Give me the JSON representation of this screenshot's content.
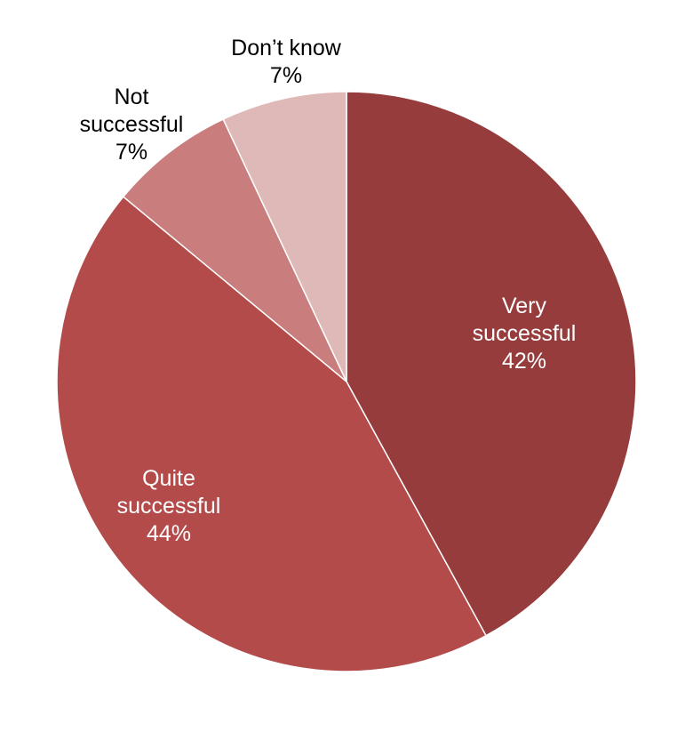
{
  "chart_data": {
    "type": "pie",
    "title": "",
    "start": "12 o'clock, clockwise",
    "slices": [
      {
        "label_lines": [
          "Very",
          "successful"
        ],
        "value_label": "42%",
        "value": 42,
        "color": "#963c3c",
        "label_position": "inside"
      },
      {
        "label_lines": [
          "Quite",
          "successful"
        ],
        "value_label": "44%",
        "value": 44,
        "color": "#b34b4b",
        "label_position": "inside"
      },
      {
        "label_lines": [
          "Not",
          "successful"
        ],
        "value_label": "7%",
        "value": 7,
        "color": "#c97d7d",
        "label_position": "outside"
      },
      {
        "label_lines": [
          "Don’t know"
        ],
        "value_label": "7%",
        "value": 7,
        "color": "#dfb8b8",
        "label_position": "outside"
      }
    ]
  }
}
